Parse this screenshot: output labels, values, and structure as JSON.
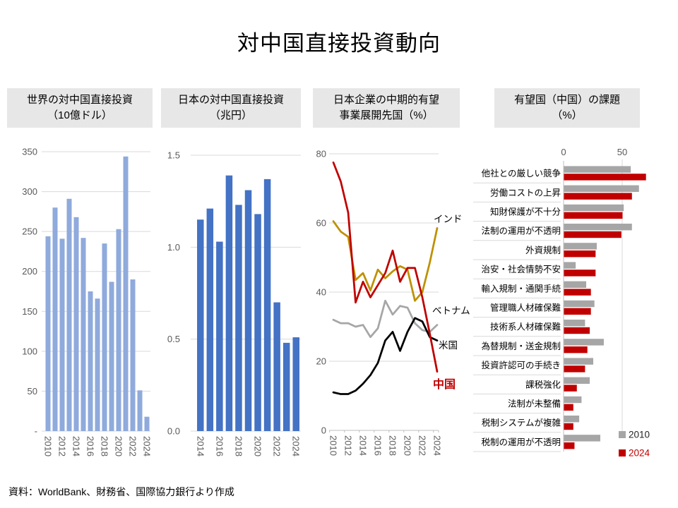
{
  "title": "対中国直接投資動向",
  "source": "資料：WorldBank、財務省、国際協力銀行より作成",
  "headers": [
    {
      "line1": "世界の対中国直接投資",
      "line2": "（10億ドル）"
    },
    {
      "line1": "日本の対中国直接投資",
      "line2": "（兆円）"
    },
    {
      "line1": "日本企業の中期的有望",
      "line2": "事業展開先国（%）"
    },
    {
      "line1": "有望国（中国）の課題",
      "line2": "（%）"
    }
  ],
  "chart_data": [
    {
      "type": "bar",
      "title": "世界の対中国直接投資（10億ドル）",
      "ylabel": "10億ドル",
      "categories": [
        "2010",
        "2011",
        "2012",
        "2013",
        "2014",
        "2015",
        "2016",
        "2017",
        "2018",
        "2019",
        "2020",
        "2021",
        "2022",
        "2023",
        "2024"
      ],
      "values": [
        244,
        280,
        241,
        291,
        268,
        242,
        175,
        166,
        235,
        187,
        253,
        344,
        190,
        51,
        18
      ],
      "ylim": [
        0,
        350
      ],
      "yticks": [
        0,
        50,
        100,
        150,
        200,
        250,
        300,
        350
      ],
      "ytick_labels": [
        "-",
        "50",
        "100",
        "150",
        "200",
        "250",
        "300",
        "350"
      ],
      "bar_color": "#8FAADC",
      "grid": true
    },
    {
      "type": "bar",
      "title": "日本の対中国直接投資（兆円）",
      "ylabel": "兆円",
      "categories": [
        "2014",
        "2015",
        "2016",
        "2017",
        "2018",
        "2019",
        "2020",
        "2021",
        "2022",
        "2023",
        "2024"
      ],
      "values": [
        1.15,
        1.21,
        1.03,
        1.39,
        1.23,
        1.31,
        1.18,
        1.37,
        0.7,
        0.48,
        0.51
      ],
      "ylim": [
        0,
        1.5
      ],
      "yticks": [
        0,
        0.5,
        1.0,
        1.5
      ],
      "ytick_labels": [
        "0.0",
        "0.5",
        "1.0",
        "1.5"
      ],
      "bar_color": "#4472C4",
      "grid": true
    },
    {
      "type": "line",
      "title": "日本企業の中期的有望事業展開先国（%）",
      "x": [
        "2010",
        "2011",
        "2012",
        "2013",
        "2014",
        "2015",
        "2016",
        "2017",
        "2018",
        "2019",
        "2020",
        "2021",
        "2022",
        "2023",
        "2024"
      ],
      "ylim": [
        0,
        80
      ],
      "yticks": [
        0,
        20,
        40,
        60,
        80
      ],
      "ytick_labels": [
        "0",
        "20",
        "40",
        "60",
        "80"
      ],
      "grid": true,
      "series": [
        {
          "name": "ベトナム",
          "color": "#A6A6A6",
          "label_color": "#000000",
          "values": [
            32,
            31,
            31,
            30,
            30.5,
            27,
            29.5,
            37.5,
            33.5,
            36,
            35.5,
            31,
            29,
            28.5,
            30.5
          ]
        },
        {
          "name": "米国",
          "color": "#000000",
          "label_color": "#000000",
          "values": [
            11,
            10.5,
            10.5,
            11.5,
            13.5,
            16,
            19.5,
            26,
            28.5,
            23,
            28.5,
            32.5,
            31.5,
            27,
            26
          ]
        },
        {
          "name": "インド",
          "color": "#BF9000",
          "label_color": "#000000",
          "values": [
            60.5,
            57.5,
            56,
            43.5,
            45.5,
            40.5,
            46.5,
            44,
            46,
            47.5,
            46.5,
            37.5,
            40,
            48.5,
            58.5
          ]
        },
        {
          "name": "中国",
          "color": "#C00000",
          "label_color": "#C00000",
          "values": [
            77.5,
            72,
            63,
            37,
            43,
            38.5,
            42,
            45.5,
            52,
            43,
            47,
            47,
            38.5,
            28,
            17
          ]
        }
      ]
    },
    {
      "type": "hbar",
      "title": "有望国（中国）の課題（%）",
      "categories": [
        "他社との厳しい競争",
        "労働コストの上昇",
        "知財保護が不十分",
        "法制の運用が不透明",
        "外資規制",
        "治安・社会情勢不安",
        "輸入規制・通関手続",
        "管理職人材確保難",
        "技術系人材確保難",
        "為替規制・送金規制",
        "投資許認可の手続き",
        "課税強化",
        "法制が未整備",
        "税制システムが複雑",
        "税制の運用が不透明"
      ],
      "xlim": [
        0,
        80
      ],
      "xticks": [
        0,
        50
      ],
      "xtick_labels": [
        "0",
        "50"
      ],
      "series": [
        {
          "name": "2010",
          "color": "#A6A6A6",
          "legend_text_color": "#262626",
          "values": [
            57,
            64,
            51,
            58,
            28,
            10,
            19,
            26,
            18,
            34,
            25,
            22,
            15,
            13,
            31
          ]
        },
        {
          "name": "2024",
          "color": "#C00000",
          "legend_text_color": "#C00000",
          "values": [
            70,
            58,
            50,
            49,
            27,
            27,
            23,
            23,
            22,
            20,
            18,
            11,
            8,
            8,
            9
          ]
        }
      ]
    }
  ]
}
